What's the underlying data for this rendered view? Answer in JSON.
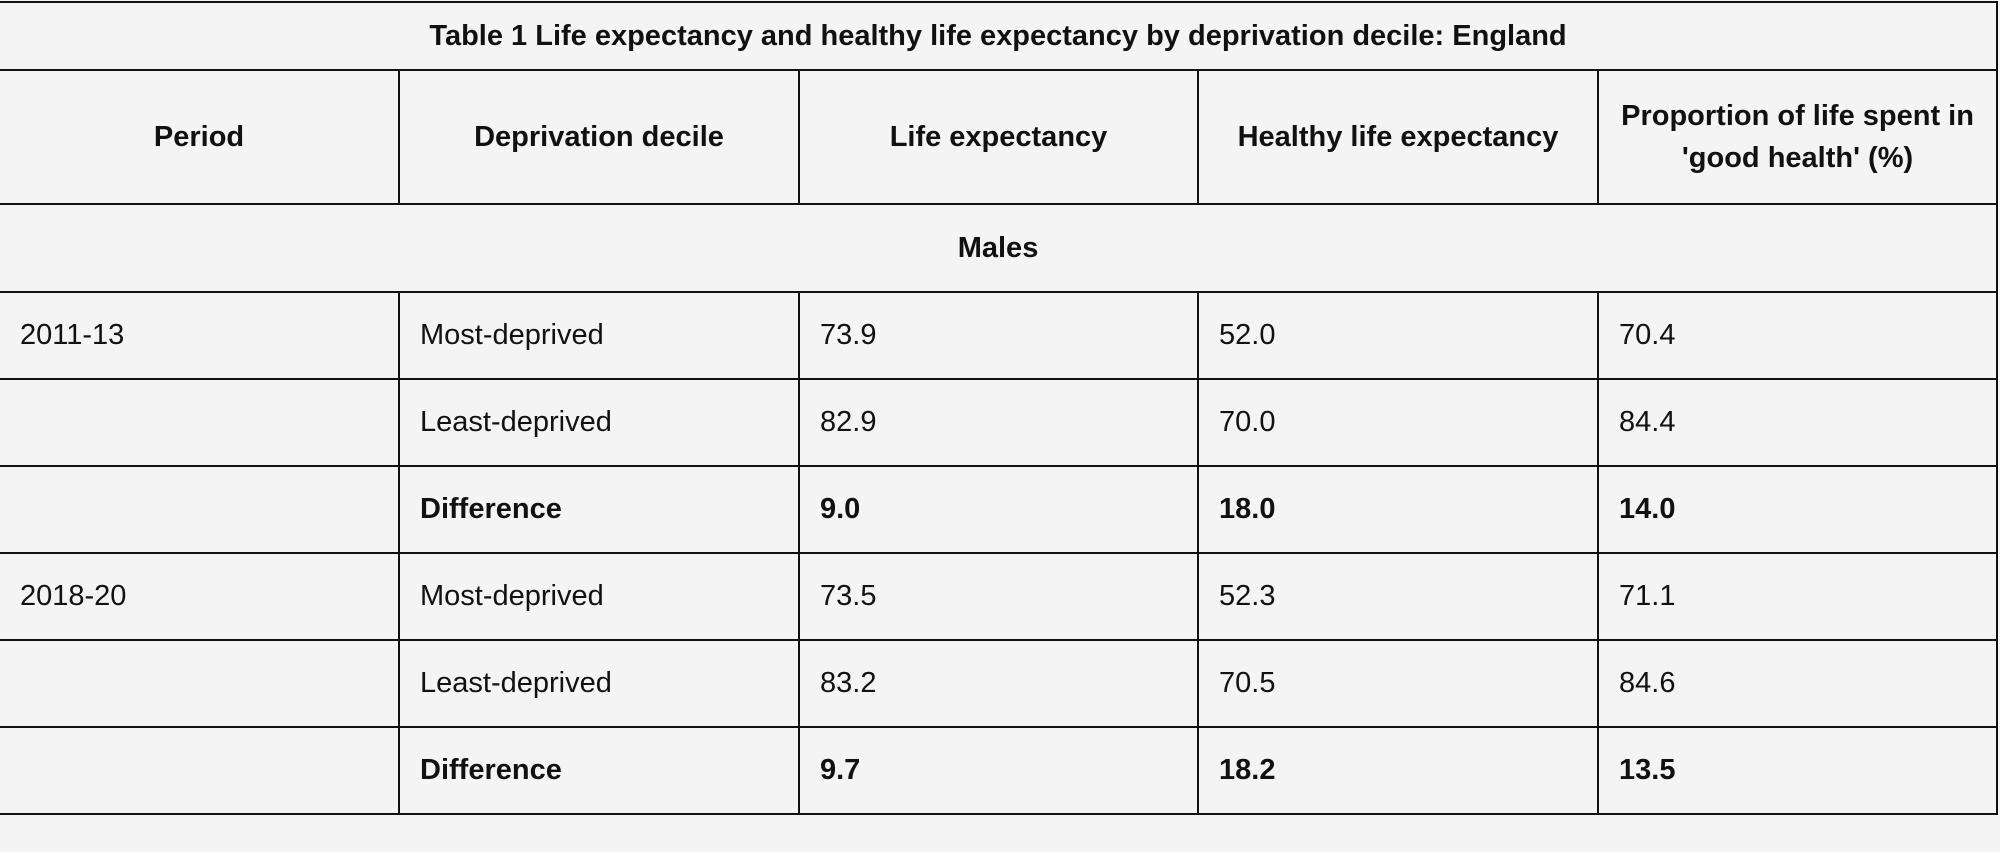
{
  "table": {
    "title": "Table 1 Life expectancy and healthy life expectancy by deprivation decile: England",
    "columns": [
      "Period",
      "Deprivation decile",
      "Life expectancy",
      "Healthy life expectancy",
      "Proportion of life spent in 'good health' (%)"
    ],
    "sections": [
      {
        "label": "Males",
        "rows": [
          {
            "period": "2011-13",
            "decile": "Most-deprived",
            "life_expectancy": "73.9",
            "healthy_life_expectancy": "52.0",
            "proportion_good_health": "70.4",
            "bold": false
          },
          {
            "period": "",
            "decile": "Least-deprived",
            "life_expectancy": "82.9",
            "healthy_life_expectancy": "70.0",
            "proportion_good_health": "84.4",
            "bold": false
          },
          {
            "period": "",
            "decile": "Difference",
            "life_expectancy": "9.0",
            "healthy_life_expectancy": "18.0",
            "proportion_good_health": "14.0",
            "bold": true
          },
          {
            "period": "2018-20",
            "decile": "Most-deprived",
            "life_expectancy": "73.5",
            "healthy_life_expectancy": "52.3",
            "proportion_good_health": "71.1",
            "bold": false
          },
          {
            "period": "",
            "decile": "Least-deprived",
            "life_expectancy": "83.2",
            "healthy_life_expectancy": "70.5",
            "proportion_good_health": "84.6",
            "bold": false
          },
          {
            "period": "",
            "decile": "Difference",
            "life_expectancy": "9.7",
            "healthy_life_expectancy": "18.2",
            "proportion_good_health": "13.5",
            "bold": true
          }
        ]
      }
    ]
  },
  "colors": {
    "background": "#f4f4f4",
    "border": "#111111",
    "text": "#111111"
  }
}
